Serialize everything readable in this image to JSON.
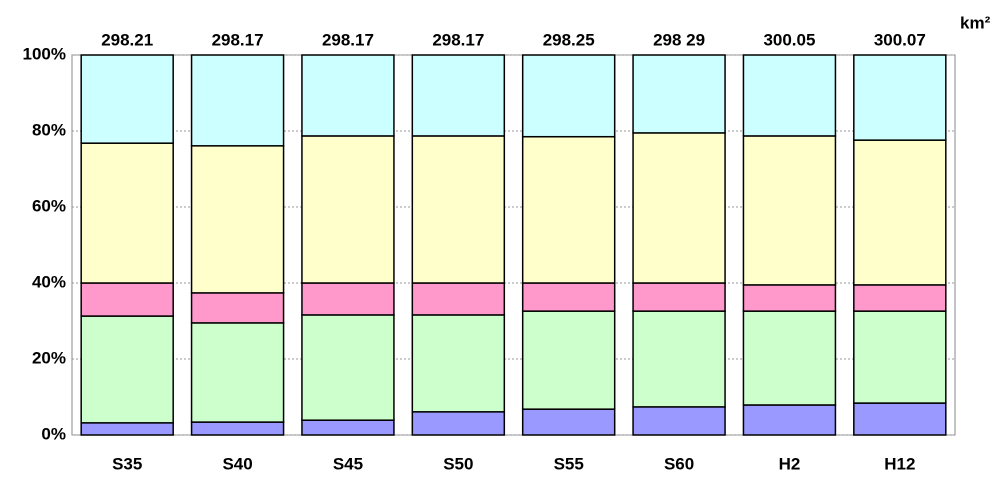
{
  "chart_data": {
    "type": "bar",
    "stacked": true,
    "unit_label": "km²",
    "categories": [
      "S35",
      "S40",
      "S45",
      "S50",
      "S55",
      "S60",
      "H2",
      "H12"
    ],
    "top_labels": [
      "298.21",
      "298.17",
      "298.17",
      "298.17",
      "298.25",
      "298 29",
      "300.05",
      "300.07"
    ],
    "series": [
      {
        "color": "#9999ff",
        "values": [
          3.2,
          3.4,
          3.9,
          6.1,
          6.8,
          7.4,
          7.9,
          8.4
        ]
      },
      {
        "color": "#ccffcc",
        "values": [
          28.1,
          26.1,
          27.7,
          25.5,
          25.8,
          25.2,
          24.7,
          24.2
        ]
      },
      {
        "color": "#ff99cc",
        "values": [
          8.7,
          7.9,
          8.4,
          8.4,
          7.4,
          7.4,
          6.9,
          6.9
        ]
      },
      {
        "color": "#ffffcc",
        "values": [
          36.8,
          38.7,
          38.7,
          38.7,
          38.5,
          39.5,
          39.2,
          38.1
        ]
      },
      {
        "color": "#ccffff",
        "values": [
          23.2,
          23.9,
          21.3,
          21.3,
          21.5,
          20.5,
          21.3,
          22.4
        ]
      }
    ],
    "ylim": [
      0,
      100
    ],
    "yticks": [
      {
        "value": 0,
        "label": "0%"
      },
      {
        "value": 20,
        "label": "20%"
      },
      {
        "value": 40,
        "label": "40%"
      },
      {
        "value": 60,
        "label": "60%"
      },
      {
        "value": 80,
        "label": "80%"
      },
      {
        "value": 100,
        "label": "100%"
      }
    ],
    "grid": true
  }
}
